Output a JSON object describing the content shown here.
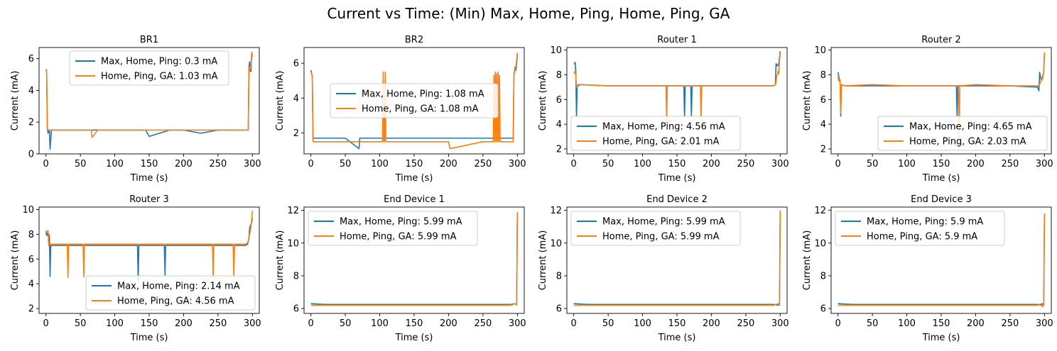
{
  "suptitle": "Current vs Time: (Min) Max, Home, Ping, Home, Ping, GA",
  "colors": {
    "series_a": "#1f77b4",
    "series_b": "#ff7f0e"
  },
  "chart_data": [
    {
      "type": "line",
      "title": "BR1",
      "xlabel": "Time (s)",
      "ylabel": "Current (mA)",
      "xlim": [
        -10,
        310
      ],
      "ylim": [
        0,
        6.7
      ],
      "xticks": [
        0,
        50,
        100,
        150,
        200,
        250,
        300
      ],
      "yticks": [
        0,
        2,
        4,
        6
      ],
      "legend": "upper center",
      "series": [
        {
          "name": "Max, Home, Ping: 0.3 mA",
          "x": [
            0,
            1,
            2,
            3,
            5,
            6,
            8,
            12,
            20,
            50,
            75,
            100,
            130,
            145,
            150,
            180,
            200,
            225,
            250,
            280,
            293,
            294,
            295,
            296,
            297,
            298,
            299,
            300
          ],
          "y": [
            5.3,
            5.2,
            1.7,
            1.3,
            1.5,
            0.3,
            1.5,
            1.5,
            1.5,
            1.5,
            1.5,
            1.5,
            1.5,
            1.5,
            1.1,
            1.5,
            1.5,
            1.3,
            1.5,
            1.5,
            1.5,
            1.5,
            5.5,
            5.8,
            5.2,
            5.2,
            6.4,
            6.2
          ]
        },
        {
          "name": "Home, Ping, GA: 1.03 mA",
          "x": [
            0,
            1,
            2,
            3,
            5,
            8,
            12,
            20,
            50,
            66,
            67,
            75,
            100,
            150,
            200,
            250,
            280,
            293,
            294,
            295,
            296,
            297,
            298,
            299,
            300
          ],
          "y": [
            5.3,
            5.3,
            1.5,
            1.5,
            1.5,
            1.5,
            1.5,
            1.5,
            1.5,
            1.5,
            1.03,
            1.5,
            1.5,
            1.5,
            1.5,
            1.5,
            1.5,
            1.5,
            1.5,
            5.3,
            5.5,
            5.3,
            5.6,
            6.4,
            6.1
          ]
        }
      ]
    },
    {
      "type": "line",
      "title": "BR2",
      "xlabel": "Time (s)",
      "ylabel": "Current (mA)",
      "xlim": [
        -10,
        310
      ],
      "ylim": [
        0.8,
        6.9
      ],
      "xticks": [
        0,
        50,
        100,
        150,
        200,
        250,
        300
      ],
      "yticks": [
        2,
        4,
        6
      ],
      "legend": "center",
      "series": [
        {
          "name": "Max, Home, Ping: 1.08 mA",
          "x": [
            0,
            1,
            2,
            3,
            5,
            10,
            30,
            50,
            70,
            71,
            100,
            150,
            200,
            250,
            290,
            293,
            294,
            295,
            296,
            297,
            298,
            299,
            300
          ],
          "y": [
            5.6,
            5.4,
            5.3,
            1.7,
            1.7,
            1.7,
            1.7,
            1.7,
            1.1,
            1.7,
            1.7,
            1.7,
            1.7,
            1.7,
            1.7,
            1.7,
            1.7,
            5.3,
            5.6,
            5.8,
            5.6,
            6.0,
            6.5
          ]
        },
        {
          "name": "Home, Ping, GA: 1.08 mA",
          "x": [
            0,
            1,
            2,
            3,
            5,
            50,
            104,
            105,
            106,
            107,
            108,
            109,
            150,
            200,
            202,
            250,
            265,
            266,
            267,
            268,
            269,
            270,
            271,
            272,
            273,
            274,
            275,
            280,
            293,
            294,
            295,
            296,
            297,
            298,
            299,
            300
          ],
          "y": [
            5.5,
            5.4,
            5.2,
            1.5,
            1.5,
            1.5,
            1.5,
            5.5,
            1.5,
            1.5,
            5.5,
            1.5,
            1.5,
            1.5,
            1.1,
            1.5,
            1.5,
            5.3,
            1.5,
            5.5,
            1.5,
            5.4,
            1.5,
            5.5,
            1.5,
            5.3,
            1.5,
            1.5,
            1.5,
            1.5,
            5.3,
            5.5,
            5.7,
            5.8,
            6.2,
            6.6
          ]
        }
      ]
    },
    {
      "type": "line",
      "title": "Router 1",
      "xlabel": "Time (s)",
      "ylabel": "Current (mA)",
      "xlim": [
        -10,
        310
      ],
      "ylim": [
        1.6,
        10.2
      ],
      "xticks": [
        0,
        50,
        100,
        150,
        200,
        250,
        300
      ],
      "yticks": [
        2,
        4,
        6,
        8,
        10
      ],
      "legend": "lower left",
      "series": [
        {
          "name": "Max, Home, Ping: 4.56 mA",
          "x": [
            0,
            1,
            2,
            3,
            4,
            5,
            6,
            10,
            50,
            100,
            150,
            160,
            161,
            162,
            170,
            171,
            172,
            200,
            250,
            290,
            293,
            294,
            295,
            296,
            297,
            298,
            299,
            300
          ],
          "y": [
            8.9,
            8.9,
            9.0,
            8.3,
            4.56,
            7.0,
            7.1,
            7.2,
            7.1,
            7.1,
            7.1,
            7.1,
            4.56,
            7.1,
            7.1,
            4.6,
            7.1,
            7.1,
            7.1,
            7.1,
            7.2,
            8.9,
            8.8,
            8.7,
            8.8,
            8.9,
            9.4,
            9.9
          ]
        },
        {
          "name": "Home, Ping, GA: 2.01 mA",
          "x": [
            0,
            1,
            2,
            3,
            4,
            5,
            6,
            10,
            50,
            100,
            134,
            135,
            136,
            150,
            184,
            185,
            186,
            200,
            250,
            290,
            293,
            294,
            295,
            296,
            297,
            298,
            299,
            300
          ],
          "y": [
            8.1,
            8.2,
            8.3,
            7.9,
            7.0,
            7.0,
            7.2,
            7.2,
            7.1,
            7.1,
            7.1,
            4.2,
            7.1,
            7.1,
            7.1,
            4.2,
            7.1,
            7.1,
            7.1,
            7.1,
            7.2,
            7.4,
            7.9,
            8.0,
            8.3,
            8.1,
            9.1,
            9.8
          ]
        }
      ]
    },
    {
      "type": "line",
      "title": "Router 2",
      "xlabel": "Time (s)",
      "ylabel": "Current (mA)",
      "xlim": [
        -10,
        310
      ],
      "ylim": [
        1.6,
        10.2
      ],
      "xticks": [
        0,
        50,
        100,
        150,
        200,
        250,
        300
      ],
      "yticks": [
        2,
        4,
        6,
        8,
        10
      ],
      "legend": "lower right",
      "series": [
        {
          "name": "Max, Home, Ping: 4.65 mA",
          "x": [
            0,
            1,
            2,
            3,
            4,
            5,
            10,
            50,
            100,
            150,
            172,
            173,
            174,
            200,
            250,
            290,
            292,
            293,
            294,
            295,
            296,
            297,
            298,
            299,
            300
          ],
          "y": [
            8.2,
            7.9,
            7.5,
            7.6,
            4.65,
            7.2,
            7.1,
            7.1,
            7.1,
            7.1,
            7.1,
            4.65,
            7.1,
            7.1,
            7.1,
            7.0,
            6.7,
            8.2,
            7.9,
            7.6,
            7.6,
            7.8,
            8.0,
            8.2,
            9.8
          ]
        },
        {
          "name": "Home, Ping, GA: 2.03 mA",
          "x": [
            0,
            1,
            2,
            3,
            4,
            5,
            10,
            50,
            100,
            150,
            175,
            176,
            177,
            200,
            250,
            290,
            293,
            294,
            295,
            296,
            297,
            298,
            299,
            300
          ],
          "y": [
            7.9,
            7.5,
            7.6,
            7.4,
            4.9,
            7.2,
            7.1,
            7.2,
            7.1,
            7.1,
            7.1,
            2.03,
            7.1,
            7.2,
            7.1,
            7.1,
            7.2,
            7.4,
            7.5,
            7.7,
            7.6,
            7.9,
            8.2,
            9.8
          ]
        }
      ]
    },
    {
      "type": "line",
      "title": "Router 3",
      "xlabel": "Time (s)",
      "ylabel": "Current (mA)",
      "xlim": [
        -10,
        310
      ],
      "ylim": [
        1.6,
        10.2
      ],
      "xticks": [
        0,
        50,
        100,
        150,
        200,
        250,
        300
      ],
      "yticks": [
        2,
        4,
        6,
        8,
        10
      ],
      "legend": "lower right",
      "series": [
        {
          "name": "Max, Home, Ping: 2.14 mA",
          "x": [
            0,
            1,
            2,
            3,
            4,
            5,
            6,
            7,
            10,
            50,
            100,
            133,
            134,
            135,
            150,
            172,
            173,
            174,
            200,
            250,
            290,
            293,
            294,
            295,
            296,
            297,
            298,
            299,
            300
          ],
          "y": [
            8.2,
            7.9,
            8.1,
            7.9,
            8.0,
            7.9,
            4.6,
            7.1,
            7.1,
            7.1,
            7.1,
            7.1,
            4.2,
            7.1,
            7.1,
            7.1,
            4.7,
            7.1,
            7.1,
            7.1,
            7.1,
            7.2,
            7.4,
            7.7,
            8.5,
            8.7,
            8.8,
            9.0,
            9.3
          ]
        },
        {
          "name": "Home, Ping, GA: 4.56 mA",
          "x": [
            0,
            1,
            2,
            3,
            4,
            5,
            10,
            31,
            32,
            33,
            54,
            55,
            56,
            100,
            150,
            200,
            242,
            243,
            244,
            272,
            273,
            274,
            290,
            293,
            294,
            295,
            296,
            297,
            298,
            299,
            300
          ],
          "y": [
            8.3,
            8.1,
            8.2,
            8.3,
            7.1,
            7.2,
            7.2,
            7.2,
            4.5,
            7.2,
            7.2,
            4.56,
            7.2,
            7.2,
            7.2,
            7.2,
            7.2,
            4.5,
            7.2,
            7.2,
            4.5,
            7.2,
            7.2,
            7.3,
            7.5,
            7.8,
            8.0,
            8.3,
            8.6,
            9.2,
            9.9
          ]
        }
      ]
    },
    {
      "type": "line",
      "title": "End Device 1",
      "xlabel": "Time (s)",
      "ylabel": "Current (mA)",
      "xlim": [
        -10,
        310
      ],
      "ylim": [
        5.7,
        12.2
      ],
      "xticks": [
        0,
        50,
        100,
        150,
        200,
        250,
        300
      ],
      "yticks": [
        6,
        8,
        10,
        12
      ],
      "legend": "upper left",
      "series": [
        {
          "name": "Max, Home, Ping: 5.99 mA",
          "x": [
            0,
            20,
            50,
            100,
            150,
            200,
            250,
            290,
            298,
            299,
            300
          ],
          "y": [
            6.3,
            6.25,
            6.25,
            6.25,
            6.25,
            6.25,
            6.25,
            6.25,
            6.3,
            6.2,
            11.8
          ]
        },
        {
          "name": "Home, Ping, GA: 5.99 mA",
          "x": [
            0,
            20,
            50,
            100,
            150,
            200,
            250,
            290,
            298,
            299,
            300
          ],
          "y": [
            6.2,
            6.2,
            6.2,
            6.2,
            6.2,
            6.2,
            6.2,
            6.2,
            6.3,
            6.2,
            11.9
          ]
        }
      ]
    },
    {
      "type": "line",
      "title": "End Device 2",
      "xlabel": "Time (s)",
      "ylabel": "Current (mA)",
      "xlim": [
        -10,
        310
      ],
      "ylim": [
        5.7,
        12.2
      ],
      "xticks": [
        0,
        50,
        100,
        150,
        200,
        250,
        300
      ],
      "yticks": [
        6,
        8,
        10,
        12
      ],
      "legend": "upper left",
      "series": [
        {
          "name": "Max, Home, Ping: 5.99 mA",
          "x": [
            0,
            20,
            50,
            100,
            150,
            200,
            250,
            290,
            298,
            299,
            300
          ],
          "y": [
            6.3,
            6.25,
            6.25,
            6.25,
            6.25,
            6.25,
            6.25,
            6.25,
            6.2,
            6.3,
            11.9
          ]
        },
        {
          "name": "Home, Ping, GA: 5.99 mA",
          "x": [
            0,
            20,
            50,
            100,
            150,
            200,
            250,
            290,
            298,
            299,
            300
          ],
          "y": [
            6.2,
            6.2,
            6.2,
            6.2,
            6.2,
            6.2,
            6.2,
            6.2,
            6.3,
            6.2,
            12.0
          ]
        }
      ]
    },
    {
      "type": "line",
      "title": "End Device 3",
      "xlabel": "Time (s)",
      "ylabel": "Current (mA)",
      "xlim": [
        -10,
        310
      ],
      "ylim": [
        5.7,
        12.2
      ],
      "xticks": [
        0,
        50,
        100,
        150,
        200,
        250,
        300
      ],
      "yticks": [
        6,
        8,
        10,
        12
      ],
      "legend": "upper left",
      "series": [
        {
          "name": "Max, Home, Ping: 5.9 mA",
          "x": [
            0,
            20,
            50,
            100,
            150,
            200,
            250,
            290,
            296,
            297,
            298,
            299,
            300
          ],
          "y": [
            6.3,
            6.25,
            6.25,
            6.25,
            6.25,
            6.25,
            6.25,
            6.25,
            6.2,
            6.3,
            6.2,
            6.2,
            11.8
          ]
        },
        {
          "name": "Home, Ping, GA: 5.9 mA",
          "x": [
            0,
            20,
            50,
            100,
            150,
            200,
            250,
            290,
            296,
            297,
            298,
            299,
            300
          ],
          "y": [
            6.2,
            6.2,
            6.2,
            6.2,
            6.2,
            6.2,
            6.2,
            6.2,
            6.3,
            6.1,
            6.2,
            6.2,
            11.8
          ]
        }
      ]
    }
  ]
}
